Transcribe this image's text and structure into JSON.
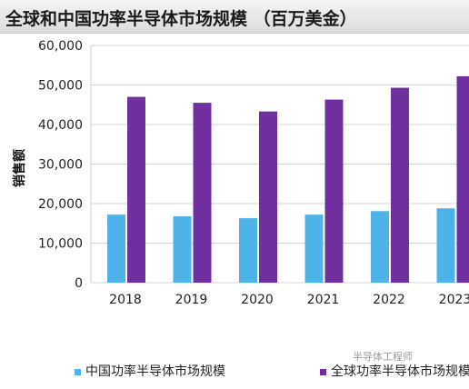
{
  "chart_data": {
    "type": "bar",
    "title": "全球和中国功率半导体市场规模 （百万美金）",
    "ylabel": "销售额",
    "categories": [
      "2018",
      "2019",
      "2020",
      "2021",
      "2022",
      "2023"
    ],
    "ylim": [
      0,
      60000
    ],
    "yticks": [
      "0",
      "10,000",
      "20,000",
      "30,000",
      "40,000",
      "50,000",
      "60,000"
    ],
    "grid": true,
    "legend_position": "bottom",
    "series": [
      {
        "name": "中国功率半导体市场规模",
        "color": "#4db3e8",
        "values": [
          17200,
          16800,
          16300,
          17200,
          18100,
          18800
        ]
      },
      {
        "name": "全球功率半导体市场规模",
        "color": "#7030a0",
        "values": [
          47000,
          45500,
          43300,
          46300,
          49300,
          52200
        ]
      }
    ]
  },
  "watermark": "半导体工程师"
}
